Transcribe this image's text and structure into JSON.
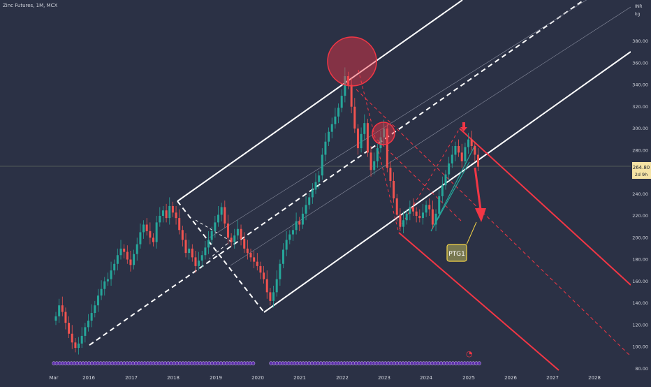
{
  "header": {
    "symbol_title": "Zinc Futures, 1M, MCX"
  },
  "colors": {
    "background": "#2b3145",
    "up": "#26a69a",
    "down": "#ef5350",
    "channel_white": "#ffffff",
    "channel_red": "#f23645",
    "price_label_bg": "#f5e3a5",
    "ptg_bg": "#787850",
    "ptg_border": "#f5d547"
  },
  "chart_data": {
    "type": "candlestick",
    "currency": "INR",
    "unit": "kg",
    "x_labels": [
      "Mar",
      "2016",
      "2017",
      "2018",
      "2019",
      "2020",
      "2021",
      "2022",
      "2023",
      "2024",
      "2025",
      "2026",
      "2027",
      "2028"
    ],
    "y_ticks": [
      "80.00",
      "100.00",
      "120.00",
      "140.00",
      "160.00",
      "180.00",
      "200.00",
      "220.00",
      "240.00",
      "260.00",
      "280.00",
      "300.00",
      "320.00",
      "340.00",
      "360.00",
      "380.00"
    ],
    "ylim": [
      80,
      400
    ],
    "last_price": "264.80",
    "countdown": "2d 9h",
    "annotation_label": "PTG1",
    "closes": [
      128,
      138,
      132,
      122,
      112,
      104,
      99,
      103,
      110,
      118,
      124,
      131,
      138,
      147,
      153,
      160,
      162,
      170,
      176,
      184,
      190,
      187,
      180,
      175,
      185,
      194,
      205,
      212,
      206,
      200,
      196,
      214,
      220,
      225,
      218,
      229,
      223,
      218,
      207,
      198,
      186,
      190,
      182,
      174,
      179,
      184,
      191,
      198,
      206,
      214,
      221,
      228,
      213,
      200,
      196,
      202,
      208,
      199,
      190,
      186,
      182,
      178,
      174,
      168,
      162,
      150,
      142,
      150,
      162,
      176,
      189,
      198,
      203,
      207,
      215,
      212,
      222,
      230,
      237,
      244,
      251,
      257,
      276,
      288,
      297,
      304,
      311,
      319,
      330,
      348,
      340,
      320,
      300,
      282,
      295,
      305,
      278,
      262,
      270,
      282,
      292,
      300,
      264,
      252,
      236,
      221,
      210,
      216,
      222,
      228,
      224,
      220,
      218,
      223,
      230,
      226,
      212,
      222,
      238,
      248,
      258,
      268,
      276,
      284,
      278,
      270,
      283,
      290,
      284,
      276,
      265
    ]
  }
}
